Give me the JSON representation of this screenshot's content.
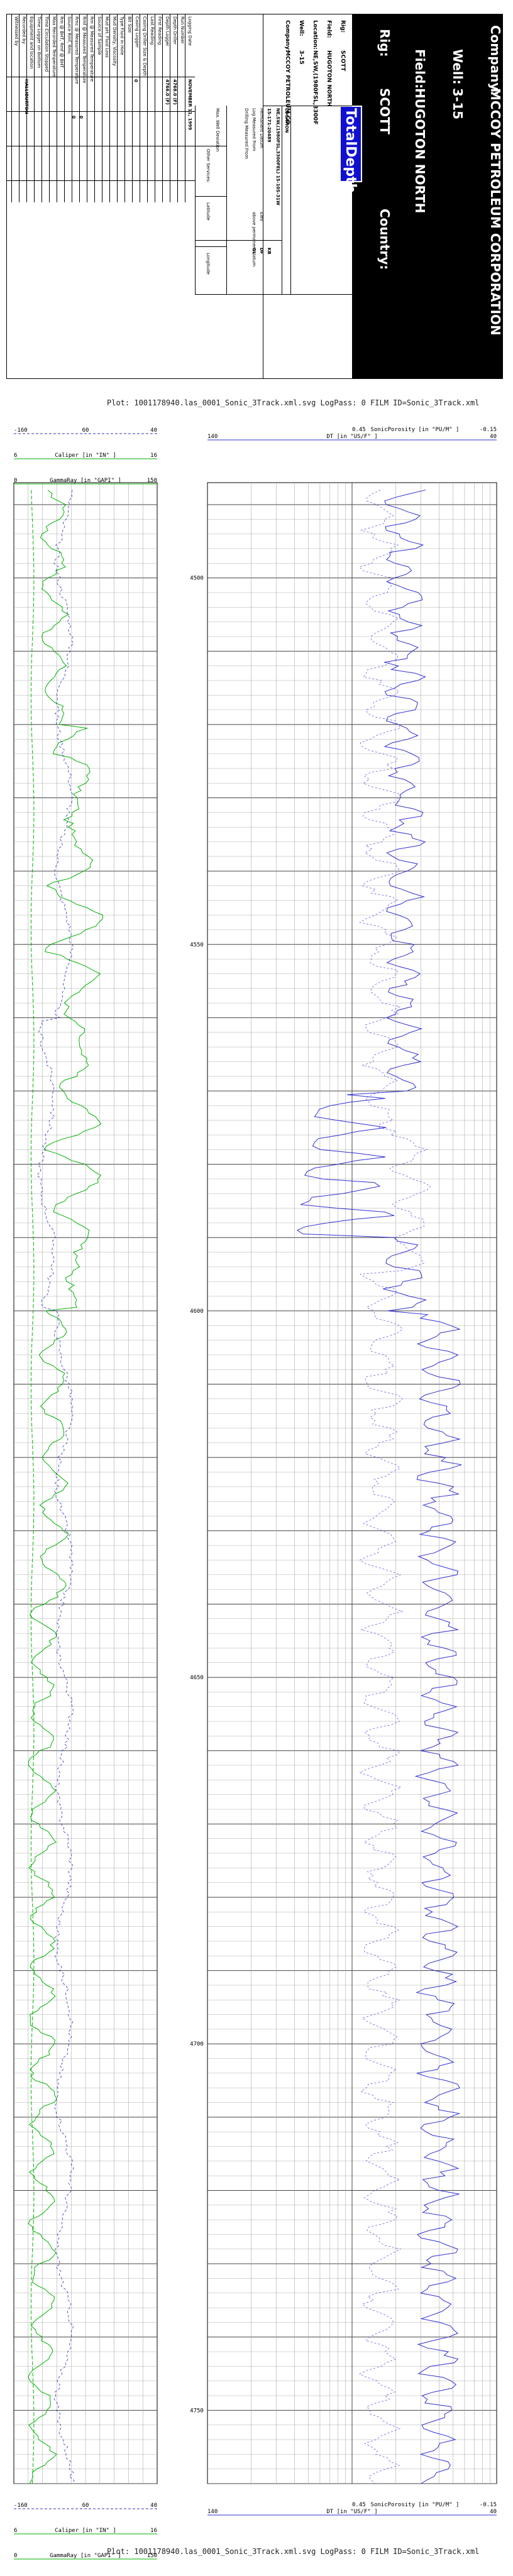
{
  "header": {
    "company_label": "Company:",
    "company": "MCCOY PETROLEUM CORPORATION",
    "well_label": "Well:",
    "well": "3-15",
    "field_label": "Field:",
    "field": "HUGOTON NORTH",
    "rig_label": "Rig:",
    "rig": "SCOTT",
    "country_label": "Country:",
    "summary": [
      {
        "label": "Rig:",
        "value": "SCOTT"
      },
      {
        "label": "Field:",
        "value": "HUGOTON NORTH"
      },
      {
        "label": "Location:",
        "value": "NE,SW,(1980FSL,3300F"
      },
      {
        "label": "Well:",
        "value": "3-15"
      },
      {
        "label": "Company:",
        "value": "MCCOY PETROLEUM CO"
      }
    ],
    "logo": "TotalDepth",
    "location_title": "LOCATION",
    "location_line": "NE,SW,(1980FSL,3300FEL) 15-10S-31W",
    "api": "15-171-20489",
    "permanent_datum_label": "Permanent Datum",
    "log_measured_label": "Log Measured From",
    "drilling_measured_label": "Drilling Measured From",
    "elev_label": "Elev",
    "elev_items": [
      "KB",
      "DF",
      "GL"
    ],
    "above_datum": "above permanent datum",
    "max_deviation": "Max. Well Deviation",
    "latitude": "Latitude",
    "longitude": "Longitude",
    "other_services": "Other Services:",
    "date": "NOVEMBER 11, 1999",
    "depth_driller": "4768.0 (F)",
    "depth_logger": "4766.0 (F)",
    "rows": [
      "Logging Date",
      "Run Number",
      "Depth Driller",
      "Depth Logger",
      "First Reading",
      "Last Reading",
      "Casing Driller Size & Depth",
      "Casing Logger",
      "Bit Size",
      "Type Fluid in Hole",
      "Mud Density, Viscosity",
      "Mud pH, Fluid Loss",
      "Source of Sample",
      "Rm @ Measured Temperature",
      "Rmf @ Measured Temperature",
      "Rmc @ Measured Temperature",
      "Source Rmf, Rmc",
      "Rm @ BHT, Rmf @ BHT",
      "Max Recorded Temperature",
      "Time Circulation Stopped",
      "Time Logger on Bottom",
      "Equipment and location",
      "Recorded by",
      "Witnessed by"
    ],
    "equipment": "HALLIBURTON",
    "zero_marks": [
      "0",
      "0",
      "0"
    ]
  },
  "plot": {
    "caption_top": "Plot: 1001178940.las_0001_Sonic_3Track.xml.svg LogPass: 0 FILM ID=Sonic_3Track.xml",
    "caption_bottom": "Plot: 1001178940.las_0001_Sonic_3Track.xml.svg LogPass: 0 FILM ID=Sonic_3Track.xml"
  },
  "chart_data": {
    "type": "line",
    "depth_unit": "FEET",
    "depth_range": [
      4487,
      4760
    ],
    "depth_ticks": [
      "4500",
      "4550",
      "4600",
      "4650",
      "4700",
      "4750"
    ],
    "scales": [
      {
        "name": "Caliper",
        "unit": "in",
        "left": "6",
        "right": "16",
        "color": "#00a000"
      },
      {
        "name": "GammaRay",
        "unit": "GAPI",
        "left": "0",
        "right": "150",
        "color": "#00a000"
      },
      {
        "name": "SP",
        "unit": "mV",
        "left": "-160",
        "mid": "60",
        "right": "40",
        "color": "#0000c0"
      },
      {
        "name": "DT",
        "unit": "us/ft",
        "left": "140",
        "mid": "90",
        "right": "40",
        "color": "#0000c0"
      },
      {
        "name": "SonicPorosity",
        "unit": "PU/M",
        "left": "0.45",
        "right": "-0.15",
        "color": "#0000c0"
      }
    ],
    "scale_text": {
      "sp_left": "-160",
      "sp_mid": "60",
      "sp_right": "40",
      "cal_title": "Caliper [in \"IN\" ]",
      "cal_left": "6",
      "cal_right": "16",
      "gr_title": "GammaRay [in \"GAPI\" ]",
      "gr_left": "0",
      "gr_right": "150",
      "dt_title": "DT [in \"US/F\" ]",
      "dt_left": "140",
      "dt_right": "40",
      "phi_title": "SonicPorosity [in \"PU/M\" ]",
      "phi_left": "0.45",
      "phi_right": "-0.15"
    }
  }
}
